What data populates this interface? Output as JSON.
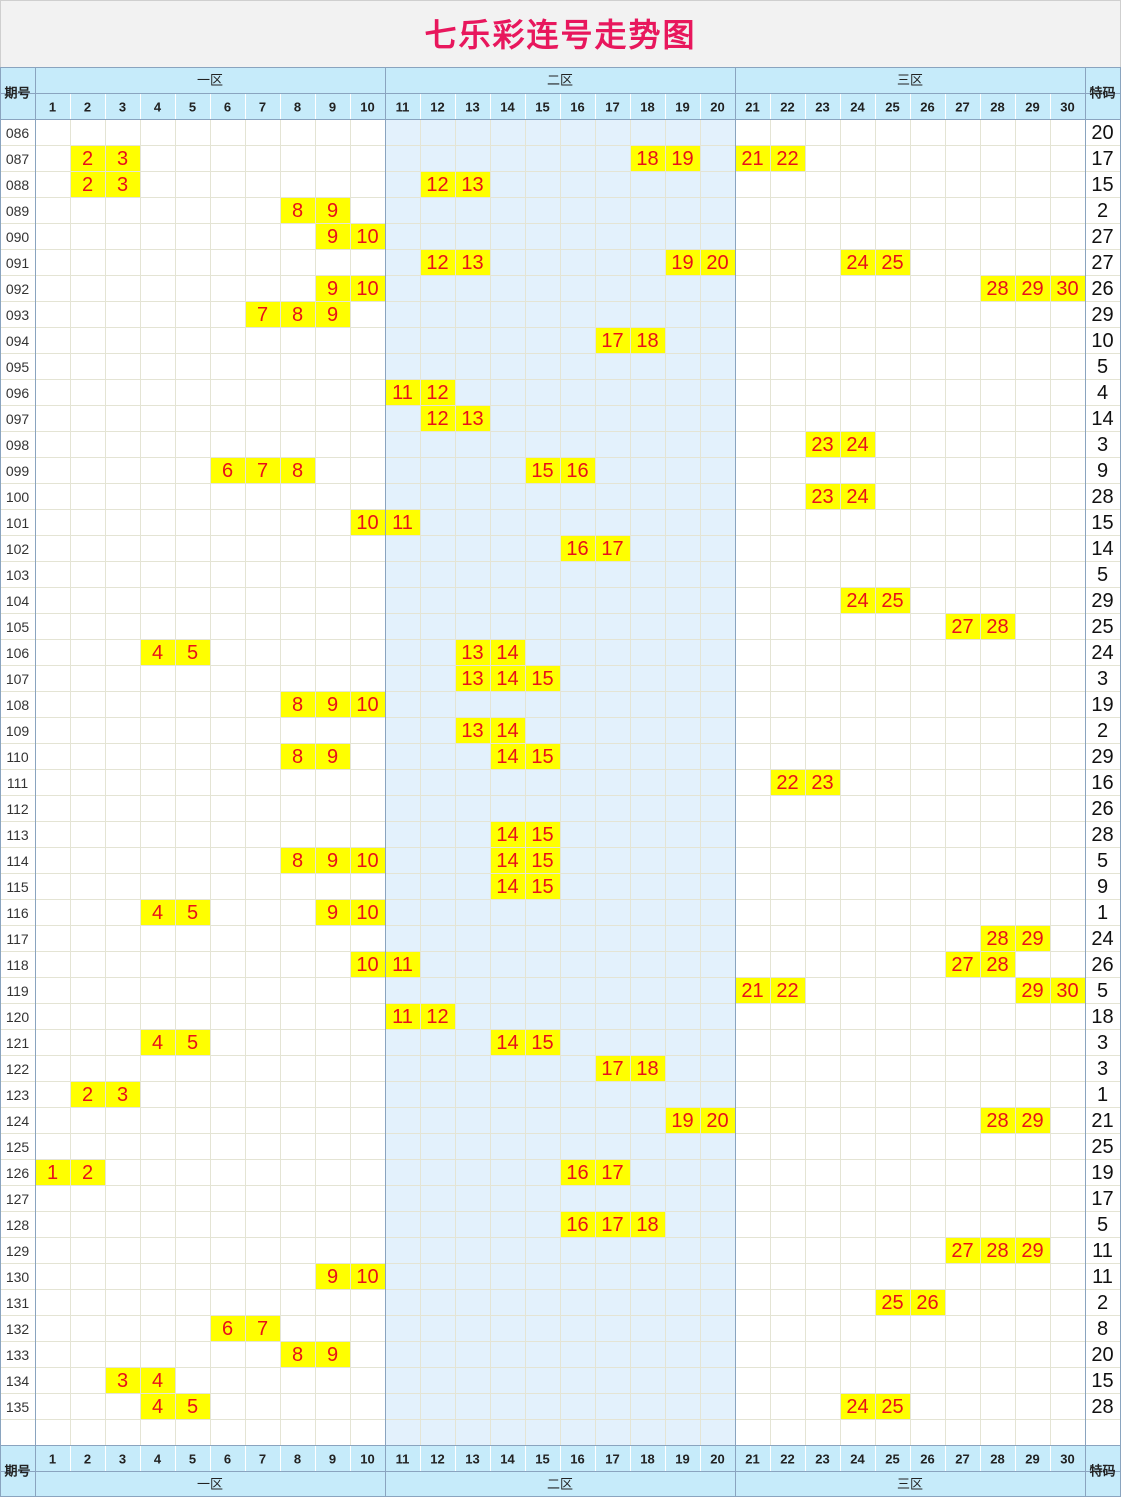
{
  "title": "七乐彩连号走势图",
  "colors": {
    "title": "#e8175d",
    "header_bg": "#c6ebfa",
    "zone2_bg": "#e3f1fc",
    "grid_line": "#e4e4d4",
    "zone_line": "#8aa4bf",
    "highlight_bg": "#ffff00",
    "highlight_text": "#e8101a"
  },
  "chart_data": {
    "type": "table",
    "header": {
      "issue_label": "期号",
      "special_label": "特码",
      "zones": [
        {
          "name": "一区",
          "from": 1,
          "to": 10
        },
        {
          "name": "二区",
          "from": 11,
          "to": 20
        },
        {
          "name": "三区",
          "from": 21,
          "to": 30
        }
      ],
      "numbers": [
        "1",
        "2",
        "3",
        "4",
        "5",
        "6",
        "7",
        "8",
        "9",
        "10",
        "11",
        "12",
        "13",
        "14",
        "15",
        "16",
        "17",
        "18",
        "19",
        "20",
        "21",
        "22",
        "23",
        "24",
        "25",
        "26",
        "27",
        "28",
        "29",
        "30"
      ]
    },
    "rows": [
      {
        "issue": "086",
        "consecutive": [],
        "special": "20"
      },
      {
        "issue": "087",
        "consecutive": [
          2,
          3,
          18,
          19,
          21,
          22
        ],
        "special": "17"
      },
      {
        "issue": "088",
        "consecutive": [
          2,
          3,
          12,
          13
        ],
        "special": "15"
      },
      {
        "issue": "089",
        "consecutive": [
          8,
          9
        ],
        "special": "2"
      },
      {
        "issue": "090",
        "consecutive": [
          9,
          10
        ],
        "special": "27"
      },
      {
        "issue": "091",
        "consecutive": [
          12,
          13,
          19,
          20,
          24,
          25
        ],
        "special": "27"
      },
      {
        "issue": "092",
        "consecutive": [
          9,
          10,
          28,
          29,
          30
        ],
        "special": "26"
      },
      {
        "issue": "093",
        "consecutive": [
          7,
          8,
          9
        ],
        "special": "29"
      },
      {
        "issue": "094",
        "consecutive": [
          17,
          18
        ],
        "special": "10"
      },
      {
        "issue": "095",
        "consecutive": [],
        "special": "5"
      },
      {
        "issue": "096",
        "consecutive": [
          11,
          12
        ],
        "special": "4"
      },
      {
        "issue": "097",
        "consecutive": [
          12,
          13
        ],
        "special": "14"
      },
      {
        "issue": "098",
        "consecutive": [
          23,
          24
        ],
        "special": "3"
      },
      {
        "issue": "099",
        "consecutive": [
          6,
          7,
          8,
          15,
          16
        ],
        "special": "9"
      },
      {
        "issue": "100",
        "consecutive": [
          23,
          24
        ],
        "special": "28"
      },
      {
        "issue": "101",
        "consecutive": [
          10,
          11
        ],
        "special": "15"
      },
      {
        "issue": "102",
        "consecutive": [
          16,
          17
        ],
        "special": "14"
      },
      {
        "issue": "103",
        "consecutive": [],
        "special": "5"
      },
      {
        "issue": "104",
        "consecutive": [
          24,
          25
        ],
        "special": "29"
      },
      {
        "issue": "105",
        "consecutive": [
          27,
          28
        ],
        "special": "25"
      },
      {
        "issue": "106",
        "consecutive": [
          4,
          5,
          13,
          14
        ],
        "special": "24"
      },
      {
        "issue": "107",
        "consecutive": [
          13,
          14,
          15
        ],
        "special": "3"
      },
      {
        "issue": "108",
        "consecutive": [
          8,
          9,
          10
        ],
        "special": "19"
      },
      {
        "issue": "109",
        "consecutive": [
          13,
          14
        ],
        "special": "2"
      },
      {
        "issue": "110",
        "consecutive": [
          8,
          9,
          14,
          15
        ],
        "special": "29"
      },
      {
        "issue": "111",
        "consecutive": [
          22,
          23
        ],
        "special": "16"
      },
      {
        "issue": "112",
        "consecutive": [],
        "special": "26"
      },
      {
        "issue": "113",
        "consecutive": [
          14,
          15
        ],
        "special": "28"
      },
      {
        "issue": "114",
        "consecutive": [
          8,
          9,
          10,
          14,
          15
        ],
        "special": "5"
      },
      {
        "issue": "115",
        "consecutive": [
          14,
          15
        ],
        "special": "9"
      },
      {
        "issue": "116",
        "consecutive": [
          4,
          5,
          9,
          10
        ],
        "special": "1"
      },
      {
        "issue": "117",
        "consecutive": [
          28,
          29
        ],
        "special": "24"
      },
      {
        "issue": "118",
        "consecutive": [
          10,
          11,
          27,
          28
        ],
        "special": "26"
      },
      {
        "issue": "119",
        "consecutive": [
          21,
          22,
          29,
          30
        ],
        "special": "5"
      },
      {
        "issue": "120",
        "consecutive": [
          11,
          12
        ],
        "special": "18"
      },
      {
        "issue": "121",
        "consecutive": [
          4,
          5,
          14,
          15
        ],
        "special": "3"
      },
      {
        "issue": "122",
        "consecutive": [
          17,
          18
        ],
        "special": "3"
      },
      {
        "issue": "123",
        "consecutive": [
          2,
          3
        ],
        "special": "1"
      },
      {
        "issue": "124",
        "consecutive": [
          19,
          20,
          28,
          29
        ],
        "special": "21"
      },
      {
        "issue": "125",
        "consecutive": [],
        "special": "25"
      },
      {
        "issue": "126",
        "consecutive": [
          1,
          2,
          16,
          17
        ],
        "special": "19"
      },
      {
        "issue": "127",
        "consecutive": [],
        "special": "17"
      },
      {
        "issue": "128",
        "consecutive": [
          16,
          17,
          18
        ],
        "special": "5"
      },
      {
        "issue": "129",
        "consecutive": [
          27,
          28,
          29
        ],
        "special": "11"
      },
      {
        "issue": "130",
        "consecutive": [
          9,
          10
        ],
        "special": "11"
      },
      {
        "issue": "131",
        "consecutive": [
          25,
          26
        ],
        "special": "2"
      },
      {
        "issue": "132",
        "consecutive": [
          6,
          7
        ],
        "special": "8"
      },
      {
        "issue": "133",
        "consecutive": [
          8,
          9
        ],
        "special": "20"
      },
      {
        "issue": "134",
        "consecutive": [
          3,
          4
        ],
        "special": "15"
      },
      {
        "issue": "135",
        "consecutive": [
          4,
          5,
          24,
          25
        ],
        "special": "28"
      }
    ]
  }
}
